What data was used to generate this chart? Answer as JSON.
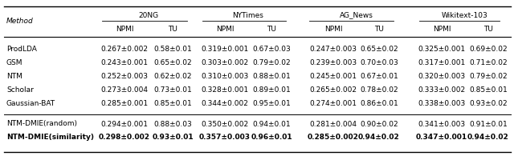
{
  "col_groups": [
    "20NG",
    "NYTimes",
    "AG_News",
    "Wikitext-103"
  ],
  "sub_cols": [
    "NPMI",
    "TU"
  ],
  "methods": [
    "ProdLDA",
    "GSM",
    "NTM",
    "Scholar",
    "Gaussian-BAT",
    "NTM-DMIE(random)",
    "NTM-DMIE(similarity)"
  ],
  "data": {
    "ProdLDA": [
      "0.267±0.002",
      "0.58±0.01",
      "0.319±0.001",
      "0.67±0.03",
      "0.247±0.003",
      "0.65±0.02",
      "0.325±0.001",
      "0.69±0.02"
    ],
    "GSM": [
      "0.243±0.001",
      "0.65±0.02",
      "0.303±0.002",
      "0.79±0.02",
      "0.239±0.003",
      "0.70±0.03",
      "0.317±0.001",
      "0.71±0.02"
    ],
    "NTM": [
      "0.252±0.003",
      "0.62±0.02",
      "0.310±0.003",
      "0.88±0.01",
      "0.245±0.001",
      "0.67±0.01",
      "0.320±0.003",
      "0.79±0.02"
    ],
    "Scholar": [
      "0.273±0.004",
      "0.73±0.01",
      "0.328±0.001",
      "0.89±0.01",
      "0.265±0.002",
      "0.78±0.02",
      "0.333±0.002",
      "0.85±0.01"
    ],
    "Gaussian-BAT": [
      "0.285±0.001",
      "0.85±0.01",
      "0.344±0.002",
      "0.95±0.01",
      "0.274±0.001",
      "0.86±0.01",
      "0.338±0.003",
      "0.93±0.02"
    ],
    "NTM-DMIE(random)": [
      "0.294±0.001",
      "0.88±0.03",
      "0.350±0.002",
      "0.94±0.01",
      "0.281±0.004",
      "0.90±0.02",
      "0.341±0.003",
      "0.91±0.01"
    ],
    "NTM-DMIE(similarity)": [
      "0.298±0.002",
      "0.93±0.01",
      "0.357±0.003",
      "0.96±0.01",
      "0.285±0.002",
      "0.94±0.02",
      "0.347±0.001",
      "0.94±0.02"
    ]
  },
  "figsize": [
    6.4,
    2.01
  ],
  "dpi": 100,
  "font_size": 6.5,
  "header_font_size": 6.5
}
